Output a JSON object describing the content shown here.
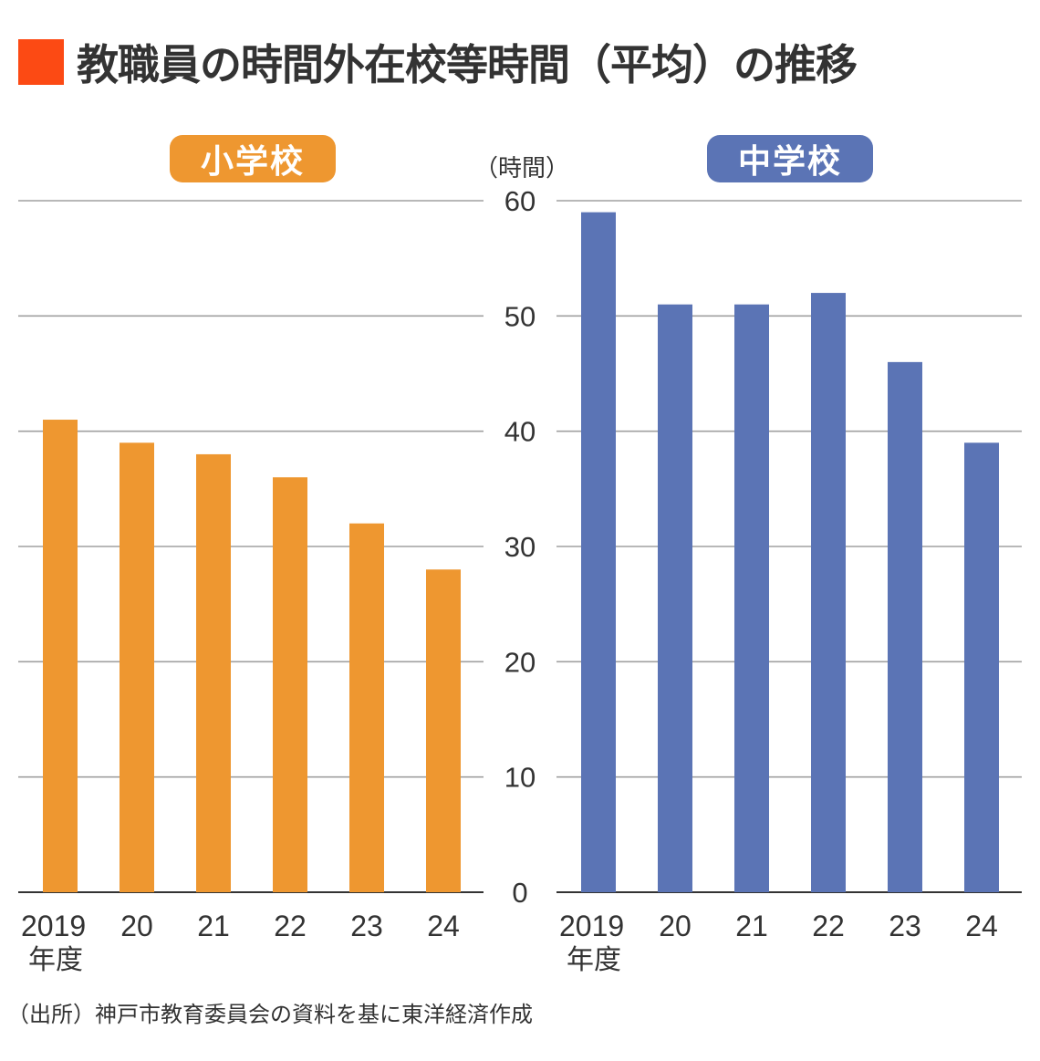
{
  "title": "教職員の時間外在校等時間（平均）の推移",
  "accent_color": "#fc4a14",
  "source": "（出所）神戸市教育委員会の資料を基に東洋経済作成",
  "chart_data": [
    {
      "type": "bar",
      "title": "小学校",
      "color": "#ee9730",
      "ylabel": "（時間）",
      "xlabel": "",
      "categories": [
        "2019",
        "20",
        "21",
        "22",
        "23",
        "24"
      ],
      "category_sublabel": "年度",
      "values": [
        41,
        39,
        38,
        36,
        32,
        28
      ],
      "ylim": [
        0,
        60
      ],
      "yticks": [
        "0",
        "10",
        "20",
        "30",
        "40",
        "50",
        "60"
      ],
      "grid": true
    },
    {
      "type": "bar",
      "title": "中学校",
      "color": "#5b74b5",
      "ylabel": "（時間）",
      "xlabel": "",
      "categories": [
        "2019",
        "20",
        "21",
        "22",
        "23",
        "24"
      ],
      "category_sublabel": "年度",
      "values": [
        59,
        51,
        51,
        52,
        46,
        39
      ],
      "ylim": [
        0,
        60
      ],
      "yticks": [
        "0",
        "10",
        "20",
        "30",
        "40",
        "50",
        "60"
      ],
      "grid": true
    }
  ]
}
